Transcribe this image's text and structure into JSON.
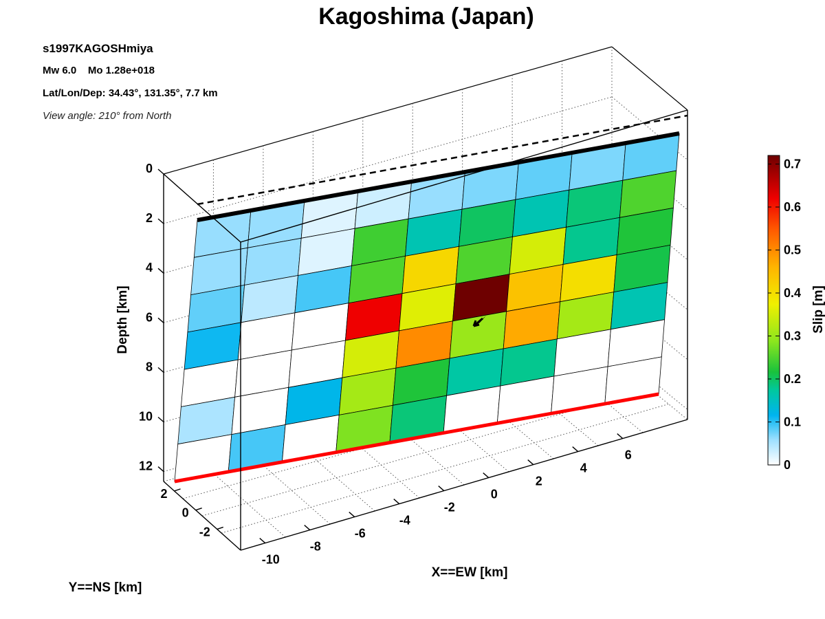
{
  "chart_data": {
    "type": "heatmap",
    "title": "Kagoshima (Japan)",
    "event_id": "s1997KAGOSHmiya",
    "magnitude_line": "Mw 6.0    Mo 1.28e+018",
    "location_line": "Lat/Lon/Dep: 34.43°, 131.35°, 7.7 km",
    "view_line": "View angle: 210° from North",
    "xlabel": "X==EW [km]",
    "ylabel": "Y==NS [km]",
    "zlabel": "Depth [km]",
    "x_ticks": [
      "-10",
      "-8",
      "-6",
      "-4",
      "-2",
      "0",
      "2",
      "4",
      "6"
    ],
    "y_ticks": [
      "2",
      "0",
      "-2"
    ],
    "z_ticks": [
      "0",
      "2",
      "4",
      "6",
      "8",
      "10",
      "12"
    ],
    "colorbar": {
      "label": "Slip [m]",
      "ticks": [
        "0",
        "0.1",
        "0.2",
        "0.3",
        "0.4",
        "0.5",
        "0.6",
        "0.7"
      ],
      "range": [
        0,
        0.72
      ]
    },
    "slip_grid": {
      "rows": 7,
      "cols": 9,
      "order": "rows top-to-bottom (shallow to deep), columns left-to-right as displayed",
      "values_m": [
        [
          0.06,
          0.06,
          0.02,
          0.03,
          0.06,
          0.07,
          0.08,
          0.07,
          0.08
        ],
        [
          0.06,
          0.06,
          0.02,
          0.24,
          0.16,
          0.2,
          0.16,
          0.19,
          0.25
        ],
        [
          0.08,
          0.04,
          0.09,
          0.25,
          0.41,
          0.25,
          0.35,
          0.18,
          0.22
        ],
        [
          0.11,
          0.0,
          0.0,
          0.62,
          0.36,
          0.72,
          0.44,
          0.4,
          0.21
        ],
        [
          0.0,
          0.0,
          0.0,
          0.35,
          0.5,
          0.3,
          0.47,
          0.31,
          0.16
        ],
        [
          0.05,
          0.0,
          0.12,
          0.31,
          0.22,
          0.17,
          0.18,
          0.0,
          0.0
        ],
        [
          0.0,
          0.09,
          0.0,
          0.28,
          0.19,
          0.0,
          0.0,
          0.0,
          0.0
        ]
      ]
    },
    "hypocenter_marker": "black arrow at row 4, col 6",
    "lines": {
      "fault_top": "black thick line",
      "fault_bottom": "red thick line",
      "surface_trace": "dashed black line"
    },
    "colors": {
      "fault_top": "#000000",
      "fault_bottom": "#ff0000"
    }
  }
}
